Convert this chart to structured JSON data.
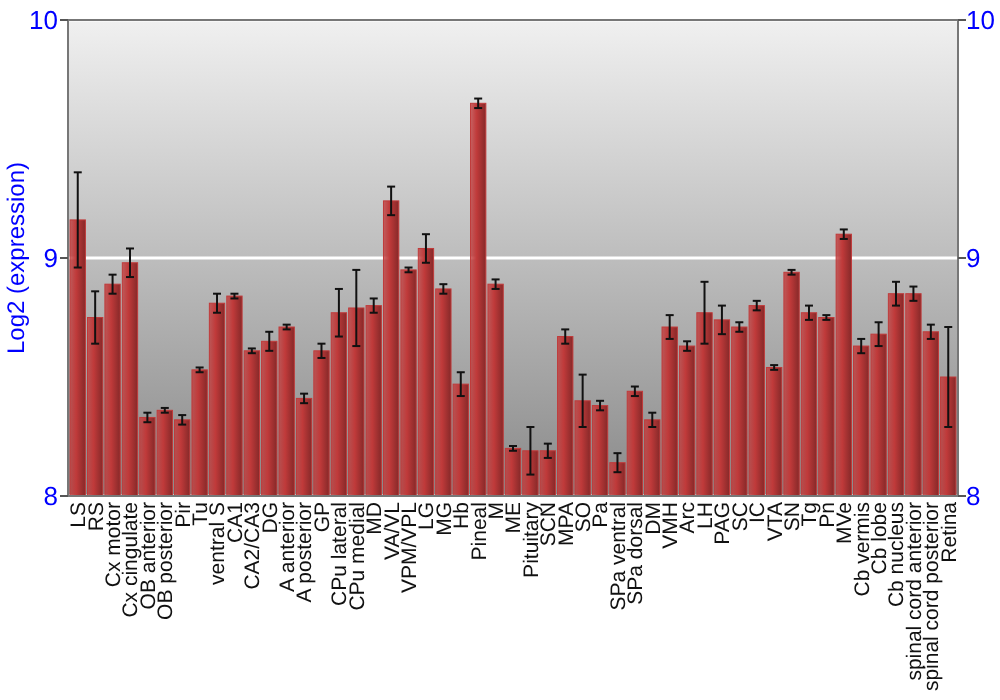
{
  "chart_data": {
    "type": "bar",
    "ylabel": "Log2 (expression)",
    "categories": [
      "LS",
      "RS",
      "Cx motor",
      "Cx cingulate",
      "OB anterior",
      "OB posterior",
      "Pir",
      "Tu",
      "ventral S",
      "CA1",
      "CA2/CA3",
      "DG",
      "A anterior",
      "A posterior",
      "GP",
      "CPu lateral",
      "CPu medial",
      "MD",
      "VA/VL",
      "VPM/VPL",
      "LG",
      "MG",
      "Hb",
      "Pineal",
      "M",
      "ME",
      "Pituitary",
      "SCN",
      "MPA",
      "SO",
      "Pa",
      "SPa ventral",
      "SPa dorsal",
      "DM",
      "VMH",
      "Arc",
      "LH",
      "PAG",
      "SC",
      "IC",
      "VTA",
      "SN",
      "Tg",
      "Pn",
      "MVe",
      "Cb vermis",
      "Cb lobe",
      "Cb nucleus",
      "spinal cord anterior",
      "spinal cord posterior",
      "Retina"
    ],
    "values": [
      9.16,
      8.75,
      8.89,
      8.98,
      8.33,
      8.36,
      8.32,
      8.53,
      8.81,
      8.84,
      8.61,
      8.65,
      8.71,
      8.41,
      8.61,
      8.77,
      8.79,
      8.8,
      9.24,
      8.95,
      9.04,
      8.87,
      8.47,
      9.65,
      8.89,
      8.2,
      8.19,
      8.19,
      8.67,
      8.4,
      8.38,
      8.14,
      8.44,
      8.32,
      8.71,
      8.63,
      8.77,
      8.74,
      8.71,
      8.8,
      8.54,
      8.94,
      8.77,
      8.75,
      9.1,
      8.63,
      8.68,
      8.85,
      8.85,
      8.69,
      8.5
    ],
    "errors": [
      0.2,
      0.11,
      0.04,
      0.06,
      0.02,
      0.01,
      0.02,
      0.01,
      0.04,
      0.01,
      0.01,
      0.04,
      0.01,
      0.02,
      0.03,
      0.1,
      0.16,
      0.03,
      0.06,
      0.01,
      0.06,
      0.02,
      0.05,
      0.02,
      0.02,
      0.01,
      0.1,
      0.03,
      0.03,
      0.11,
      0.02,
      0.04,
      0.02,
      0.03,
      0.05,
      0.02,
      0.13,
      0.06,
      0.02,
      0.02,
      0.01,
      0.01,
      0.03,
      0.01,
      0.02,
      0.03,
      0.05,
      0.05,
      0.03,
      0.03,
      0.21
    ],
    "color": "#c03a3a",
    "ylim": [
      8,
      10
    ],
    "yticks": [
      8,
      9,
      10
    ],
    "y2lim": [
      8,
      10
    ],
    "y2ticks": [
      8,
      9,
      10
    ],
    "grid": "y"
  }
}
